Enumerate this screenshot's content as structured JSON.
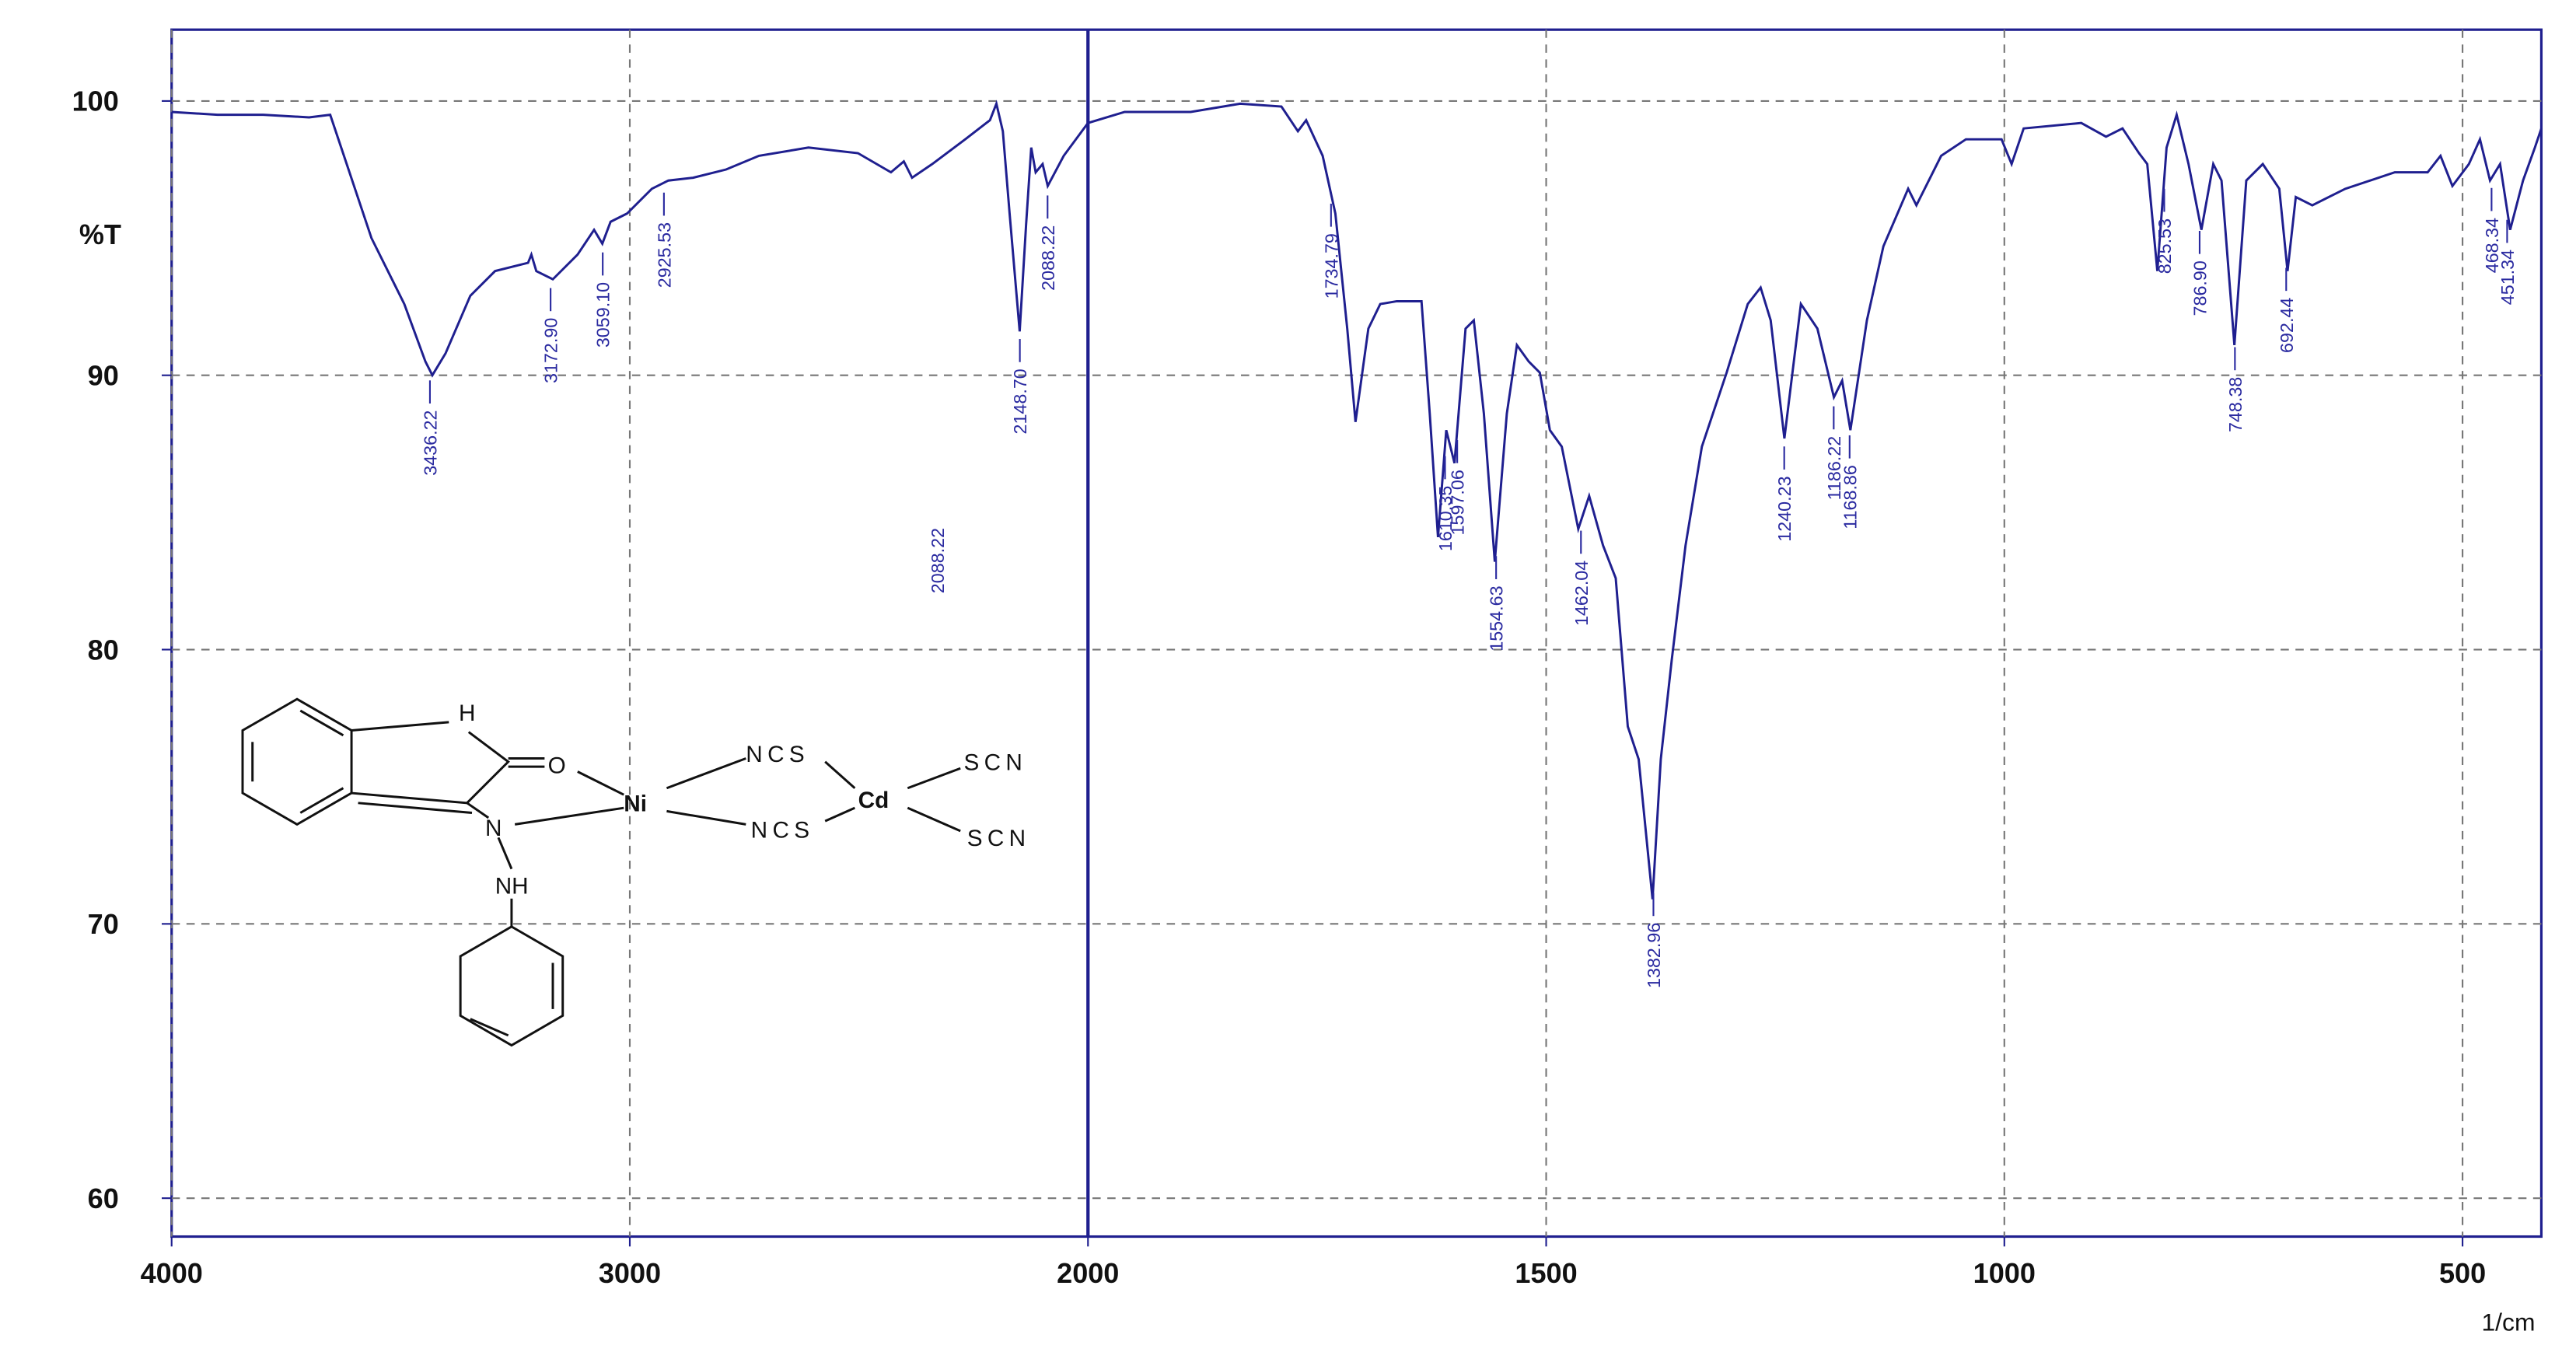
{
  "chart_data": {
    "type": "line",
    "y_label": "%T",
    "x_label": "1/cm",
    "xlim": [
      4000,
      414
    ],
    "ylim": [
      58.6,
      102.6
    ],
    "xticks": [
      4000,
      3000,
      2000,
      1500,
      1000,
      500
    ],
    "yticks": [
      100,
      90,
      80,
      70,
      60
    ],
    "x_scale_break": 2000,
    "grid": true,
    "color": "#1f1f8f",
    "x": [
      4000,
      3900,
      3800,
      3700,
      3654,
      3618,
      3564,
      3492,
      3446,
      3431,
      3402,
      3348,
      3294,
      3222,
      3215,
      3204,
      3168,
      3114,
      3078,
      3060,
      3042,
      3006,
      2952,
      2916,
      2862,
      2790,
      2718,
      2610,
      2502,
      2430,
      2402,
      2384,
      2340,
      2268,
      2214,
      2200,
      2186,
      2171,
      2149,
      2135,
      2124,
      2114,
      2099,
      2088,
      2053,
      2000,
      1960,
      1888,
      1834,
      1789,
      1771,
      1762,
      1744,
      1730,
      1717,
      1708,
      1694,
      1681,
      1663,
      1636,
      1627,
      1618,
      1609,
      1600,
      1588,
      1579,
      1568,
      1556,
      1543,
      1532,
      1519,
      1507,
      1496,
      1483,
      1465,
      1453,
      1438,
      1424,
      1411,
      1399,
      1384,
      1375,
      1363,
      1348,
      1330,
      1303,
      1280,
      1266,
      1255,
      1240,
      1222,
      1204,
      1186,
      1177,
      1168,
      1150,
      1132,
      1105,
      1096,
      1069,
      1042,
      1003,
      992,
      979,
      916,
      889,
      871,
      853,
      844,
      833,
      823,
      812,
      799,
      785,
      772,
      763,
      749,
      736,
      718,
      700,
      691,
      682,
      664,
      628,
      574,
      538,
      524,
      511,
      493,
      481,
      470,
      459,
      448,
      434,
      421,
      414
    ],
    "values": [
      99.6,
      99.5,
      99.5,
      99.4,
      99.5,
      97.7,
      95.0,
      92.6,
      90.5,
      90.0,
      90.8,
      92.9,
      93.8,
      94.1,
      94.4,
      93.8,
      93.5,
      94.4,
      95.3,
      94.8,
      95.6,
      95.9,
      96.8,
      97.1,
      97.2,
      97.5,
      98.0,
      98.3,
      98.1,
      97.4,
      97.8,
      97.2,
      97.7,
      98.6,
      99.3,
      99.9,
      98.9,
      95.9,
      91.6,
      95.5,
      98.3,
      97.4,
      97.7,
      96.9,
      98.0,
      99.2,
      99.6,
      99.6,
      99.9,
      99.8,
      98.9,
      99.3,
      98.0,
      95.9,
      91.7,
      88.3,
      91.7,
      92.6,
      92.7,
      92.7,
      88.6,
      84.1,
      88.0,
      86.8,
      91.7,
      92.0,
      88.6,
      83.2,
      88.6,
      91.1,
      90.5,
      90.1,
      88.0,
      87.4,
      84.4,
      85.6,
      83.8,
      82.6,
      77.2,
      76.0,
      70.9,
      76.0,
      79.6,
      83.8,
      87.4,
      90.1,
      92.6,
      93.2,
      92.0,
      87.7,
      92.6,
      91.7,
      89.2,
      89.8,
      88.0,
      92.0,
      94.7,
      96.8,
      96.2,
      98.0,
      98.6,
      98.6,
      97.7,
      99.0,
      99.2,
      98.7,
      99.0,
      98.1,
      97.7,
      93.8,
      98.3,
      99.5,
      97.7,
      95.3,
      97.7,
      97.1,
      91.1,
      97.1,
      97.7,
      96.8,
      93.8,
      96.5,
      96.2,
      96.8,
      97.4,
      97.4,
      98.0,
      96.9,
      97.7,
      98.6,
      97.1,
      97.7,
      95.3,
      97.1,
      98.3,
      99.0
    ],
    "peak_labels": [
      "3436.22",
      "3172.90",
      "3059.10",
      "2925.53",
      "2148.70",
      "2088.22",
      "1734.79",
      "1610.35",
      "1597.06",
      "1554.63",
      "1462.04",
      "1382.96",
      "1240.23",
      "1186.22",
      "1168.86",
      "825.53",
      "786.90",
      "748.38",
      "692.44",
      "468.34",
      "451.34"
    ],
    "notes": [
      "2088.22"
    ],
    "structure": {
      "labels": [
        "H",
        "O",
        "Ni",
        "N",
        "NH",
        "NCS",
        "NCS",
        "Cd",
        "SCN",
        "SCN"
      ]
    }
  }
}
